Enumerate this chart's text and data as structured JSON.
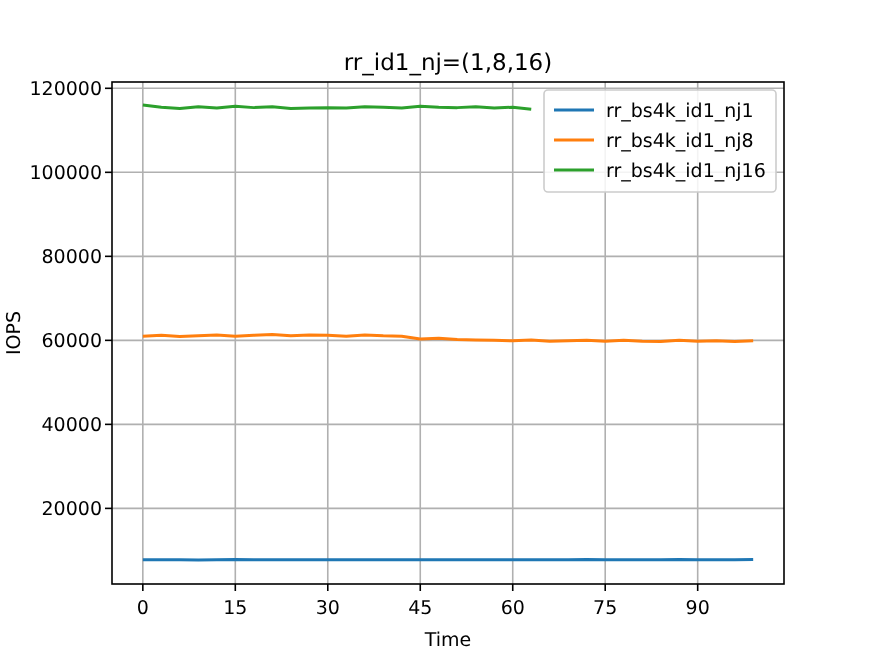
{
  "chart_data": {
    "type": "line",
    "title": "rr_id1_nj=(1,8,16)",
    "xlabel": "Time",
    "ylabel": "IOPS",
    "x": [
      0,
      3,
      6,
      9,
      12,
      15,
      18,
      21,
      24,
      27,
      30,
      33,
      36,
      39,
      42,
      45,
      48,
      51,
      54,
      57,
      60,
      63,
      66,
      69,
      72,
      75,
      78,
      81,
      84,
      87,
      90,
      93,
      96,
      99
    ],
    "xlim": [
      -5,
      104
    ],
    "xticks": [
      0,
      15,
      30,
      45,
      60,
      75,
      90
    ],
    "ylim": [
      2000,
      121500
    ],
    "yticks": [
      20000,
      40000,
      60000,
      80000,
      100000,
      120000
    ],
    "grid": true,
    "legend": "top right",
    "line_style": "solid",
    "marker": "none",
    "series": [
      {
        "name": "rr_bs4k_id1_nj1",
        "color": "#1f77b4",
        "values": [
          7800,
          7750,
          7800,
          7700,
          7800,
          7850,
          7800,
          7750,
          7800,
          7800,
          7750,
          7800,
          7800,
          7750,
          7800,
          7800,
          7750,
          7800,
          7750,
          7800,
          7800,
          7750,
          7800,
          7800,
          7850,
          7800,
          7800,
          7750,
          7800,
          7850,
          7800,
          7800,
          7800,
          7850
        ]
      },
      {
        "name": "rr_bs4k_id1_nj8",
        "color": "#ff7f0e",
        "values": [
          61000,
          61200,
          60900,
          61100,
          61300,
          61000,
          61200,
          61400,
          61100,
          61300,
          61200,
          61000,
          61300,
          61100,
          61000,
          60300,
          60500,
          60200,
          60100,
          60000,
          59900,
          60100,
          59800,
          59900,
          60000,
          59800,
          60000,
          59800,
          59700,
          60000,
          59800,
          59900,
          59700,
          59900
        ]
      },
      {
        "name": "rr_bs4k_id1_nj16",
        "color": "#2ca02c",
        "values": [
          116000,
          115500,
          115200,
          115600,
          115300,
          115700,
          115400,
          115600,
          115200,
          115300,
          115400,
          115300,
          115600,
          115500,
          115300,
          115700,
          115500,
          115400,
          115600,
          115300,
          115500,
          115000,
          null,
          null,
          null,
          null,
          null,
          null,
          null,
          null,
          null,
          null,
          null,
          null
        ]
      }
    ]
  }
}
